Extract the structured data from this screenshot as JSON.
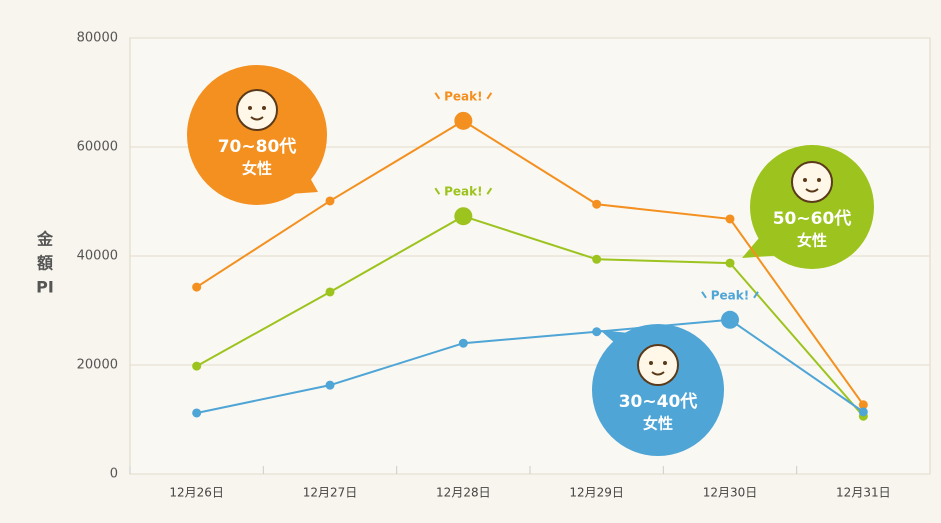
{
  "chart_data": {
    "type": "line",
    "y_label": [
      "金",
      "額",
      "PI"
    ],
    "categories": [
      "12月26日",
      "12月27日",
      "12月28日",
      "12月29日",
      "12月30日",
      "12月31日"
    ],
    "ylim": [
      0,
      80000
    ],
    "yticks": [
      0,
      20000,
      40000,
      60000,
      80000
    ],
    "grid": true,
    "series": [
      {
        "name": "70~80代",
        "sub": "女性",
        "color": "#f39020",
        "values": [
          34300,
          50100,
          64800,
          49500,
          46800,
          12700
        ],
        "peak": 2,
        "peak_label": "Peak!"
      },
      {
        "name": "50~60代",
        "sub": "女性",
        "color": "#9cc31e",
        "values": [
          19800,
          33400,
          47300,
          39400,
          38700,
          10600
        ],
        "peak": 2,
        "peak_label": "Peak!"
      },
      {
        "name": "30~40代",
        "sub": "女性",
        "color": "#4ea5d6",
        "values": [
          11200,
          16300,
          24000,
          26100,
          28300,
          11400
        ],
        "peak": 4,
        "peak_label": "Peak!"
      }
    ]
  }
}
